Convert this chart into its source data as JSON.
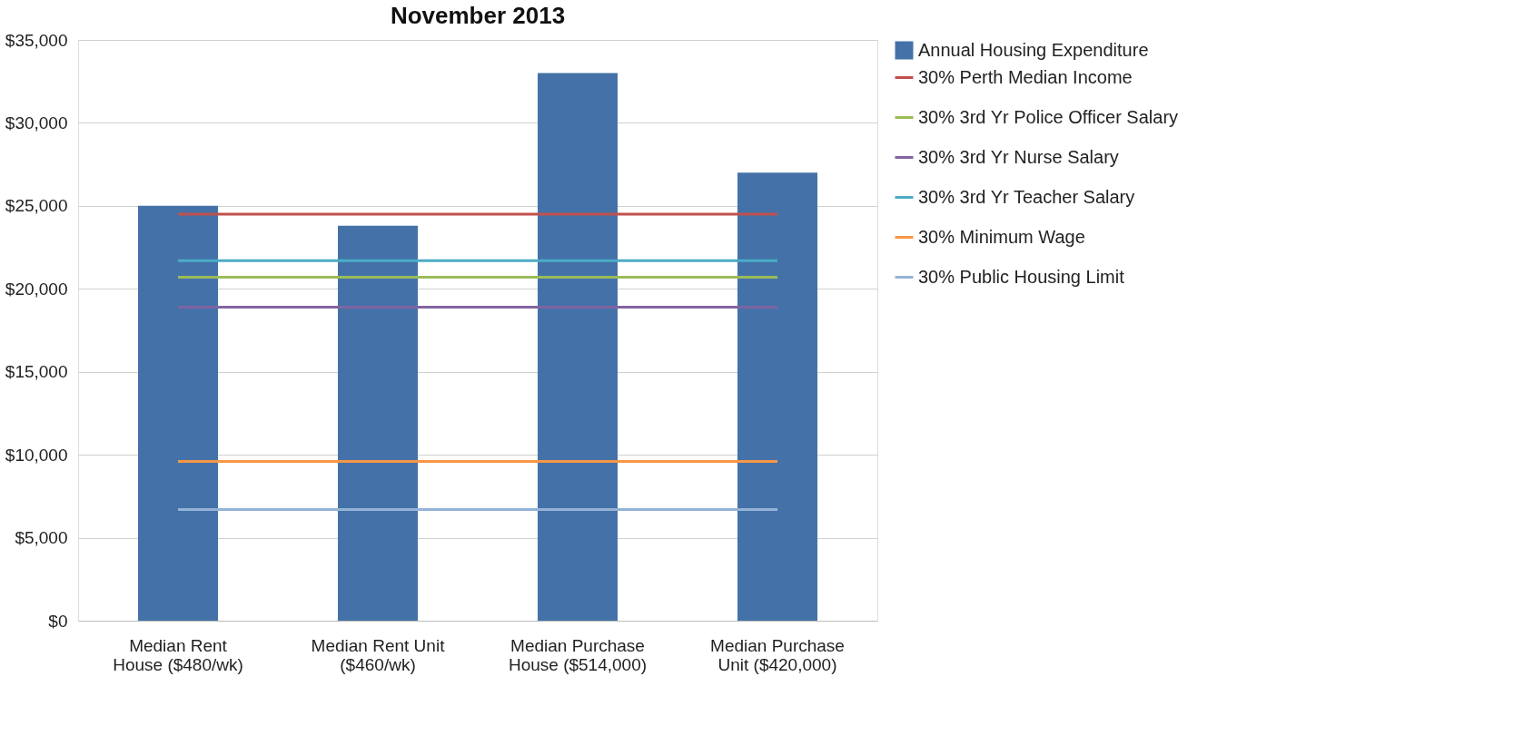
{
  "chart_data": {
    "type": "bar",
    "title": "November 2013",
    "categories": [
      "Median Rent House ($480/wk)",
      "Median Rent Unit ($460/wk)",
      "Median Purchase House ($514,000)",
      "Median Purchase Unit ($420,000)"
    ],
    "series": [
      {
        "name": "Annual Housing Expenditure",
        "color": "#4472a8",
        "values": [
          25000,
          23800,
          33000,
          27000
        ]
      },
      {
        "name": "30% Perth Median Income",
        "type": "line",
        "color": "#c0504d",
        "values": [
          24500,
          24500,
          24500,
          24500
        ]
      },
      {
        "name": "30% 3rd Yr Police Officer Salary",
        "type": "line",
        "color": "#9bbb59",
        "values": [
          20700,
          20700,
          20700,
          20700
        ]
      },
      {
        "name": "30% 3rd Yr Nurse Salary",
        "type": "line",
        "color": "#8064a2",
        "values": [
          18900,
          18900,
          18900,
          18900
        ]
      },
      {
        "name": "30% 3rd Yr Teacher Salary",
        "type": "line",
        "color": "#4bacc6",
        "values": [
          21700,
          21700,
          21700,
          21700
        ]
      },
      {
        "name": "30% Minimum Wage",
        "type": "line",
        "color": "#f79646",
        "values": [
          9600,
          9600,
          9600,
          9600
        ]
      },
      {
        "name": "30% Public Housing Limit",
        "type": "line",
        "color": "#95b3d7",
        "values": [
          6700,
          6700,
          6700,
          6700
        ]
      }
    ],
    "ylim": [
      0,
      35000
    ],
    "yticks": [
      {
        "value": 0,
        "label": "$0"
      },
      {
        "value": 5000,
        "label": "$5,000"
      },
      {
        "value": 10000,
        "label": "$10,000"
      },
      {
        "value": 15000,
        "label": "$15,000"
      },
      {
        "value": 20000,
        "label": "$20,000"
      },
      {
        "value": 25000,
        "label": "$25,000"
      },
      {
        "value": 30000,
        "label": "$30,000"
      },
      {
        "value": 35000,
        "label": "$35,000"
      }
    ],
    "grid": "y",
    "legend": "right",
    "marker": "none",
    "line_style": "solid"
  }
}
